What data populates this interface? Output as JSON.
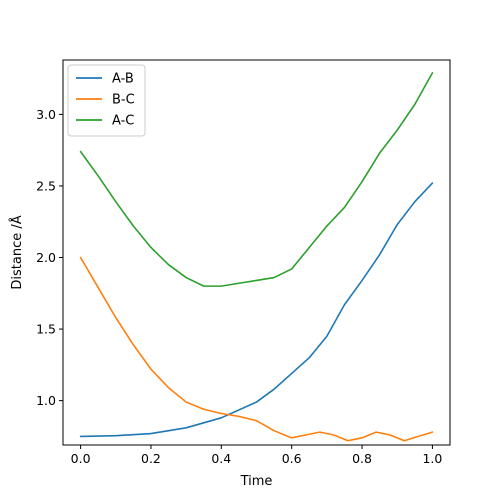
{
  "chart_data": {
    "type": "line",
    "title": "",
    "xlabel": "Time",
    "ylabel": "Distance /Å",
    "xlim": [
      -0.05,
      1.05
    ],
    "ylim": [
      0.69,
      3.38
    ],
    "grid": false,
    "legend_position": "top-left",
    "x_ticks": [
      {
        "value": 0.0,
        "label": "0.0"
      },
      {
        "value": 0.2,
        "label": "0.2"
      },
      {
        "value": 0.4,
        "label": "0.4"
      },
      {
        "value": 0.6,
        "label": "0.6"
      },
      {
        "value": 0.8,
        "label": "0.8"
      },
      {
        "value": 1.0,
        "label": "1.0"
      }
    ],
    "y_ticks": [
      {
        "value": 1.0,
        "label": "1.0"
      },
      {
        "value": 1.5,
        "label": "1.5"
      },
      {
        "value": 2.0,
        "label": "2.0"
      },
      {
        "value": 2.5,
        "label": "2.5"
      },
      {
        "value": 3.0,
        "label": "3.0"
      }
    ],
    "series": [
      {
        "name": "A-B",
        "color": "#1f77b4",
        "points": [
          [
            0.0,
            0.75
          ],
          [
            0.1,
            0.755
          ],
          [
            0.2,
            0.77
          ],
          [
            0.3,
            0.81
          ],
          [
            0.4,
            0.88
          ],
          [
            0.5,
            0.99
          ],
          [
            0.55,
            1.08
          ],
          [
            0.6,
            1.19
          ],
          [
            0.65,
            1.3
          ],
          [
            0.7,
            1.45
          ],
          [
            0.75,
            1.67
          ],
          [
            0.8,
            1.84
          ],
          [
            0.85,
            2.02
          ],
          [
            0.9,
            2.23
          ],
          [
            0.95,
            2.39
          ],
          [
            1.0,
            2.52
          ]
        ]
      },
      {
        "name": "B-C",
        "color": "#ff7f0e",
        "points": [
          [
            0.0,
            2.0
          ],
          [
            0.05,
            1.79
          ],
          [
            0.1,
            1.58
          ],
          [
            0.15,
            1.39
          ],
          [
            0.2,
            1.22
          ],
          [
            0.25,
            1.09
          ],
          [
            0.3,
            0.99
          ],
          [
            0.35,
            0.94
          ],
          [
            0.4,
            0.91
          ],
          [
            0.45,
            0.89
          ],
          [
            0.5,
            0.86
          ],
          [
            0.55,
            0.79
          ],
          [
            0.6,
            0.74
          ],
          [
            0.64,
            0.76
          ],
          [
            0.68,
            0.78
          ],
          [
            0.72,
            0.76
          ],
          [
            0.76,
            0.72
          ],
          [
            0.8,
            0.74
          ],
          [
            0.84,
            0.78
          ],
          [
            0.88,
            0.76
          ],
          [
            0.92,
            0.72
          ],
          [
            0.96,
            0.75
          ],
          [
            1.0,
            0.78
          ]
        ]
      },
      {
        "name": "A-C",
        "color": "#2ca02c",
        "points": [
          [
            0.0,
            2.74
          ],
          [
            0.05,
            2.57
          ],
          [
            0.1,
            2.39
          ],
          [
            0.15,
            2.22
          ],
          [
            0.2,
            2.07
          ],
          [
            0.25,
            1.95
          ],
          [
            0.3,
            1.86
          ],
          [
            0.35,
            1.8
          ],
          [
            0.4,
            1.8
          ],
          [
            0.45,
            1.82
          ],
          [
            0.5,
            1.84
          ],
          [
            0.55,
            1.86
          ],
          [
            0.6,
            1.92
          ],
          [
            0.65,
            2.07
          ],
          [
            0.7,
            2.22
          ],
          [
            0.75,
            2.35
          ],
          [
            0.8,
            2.53
          ],
          [
            0.85,
            2.73
          ],
          [
            0.9,
            2.89
          ],
          [
            0.95,
            3.07
          ],
          [
            1.0,
            3.29
          ]
        ]
      }
    ]
  }
}
